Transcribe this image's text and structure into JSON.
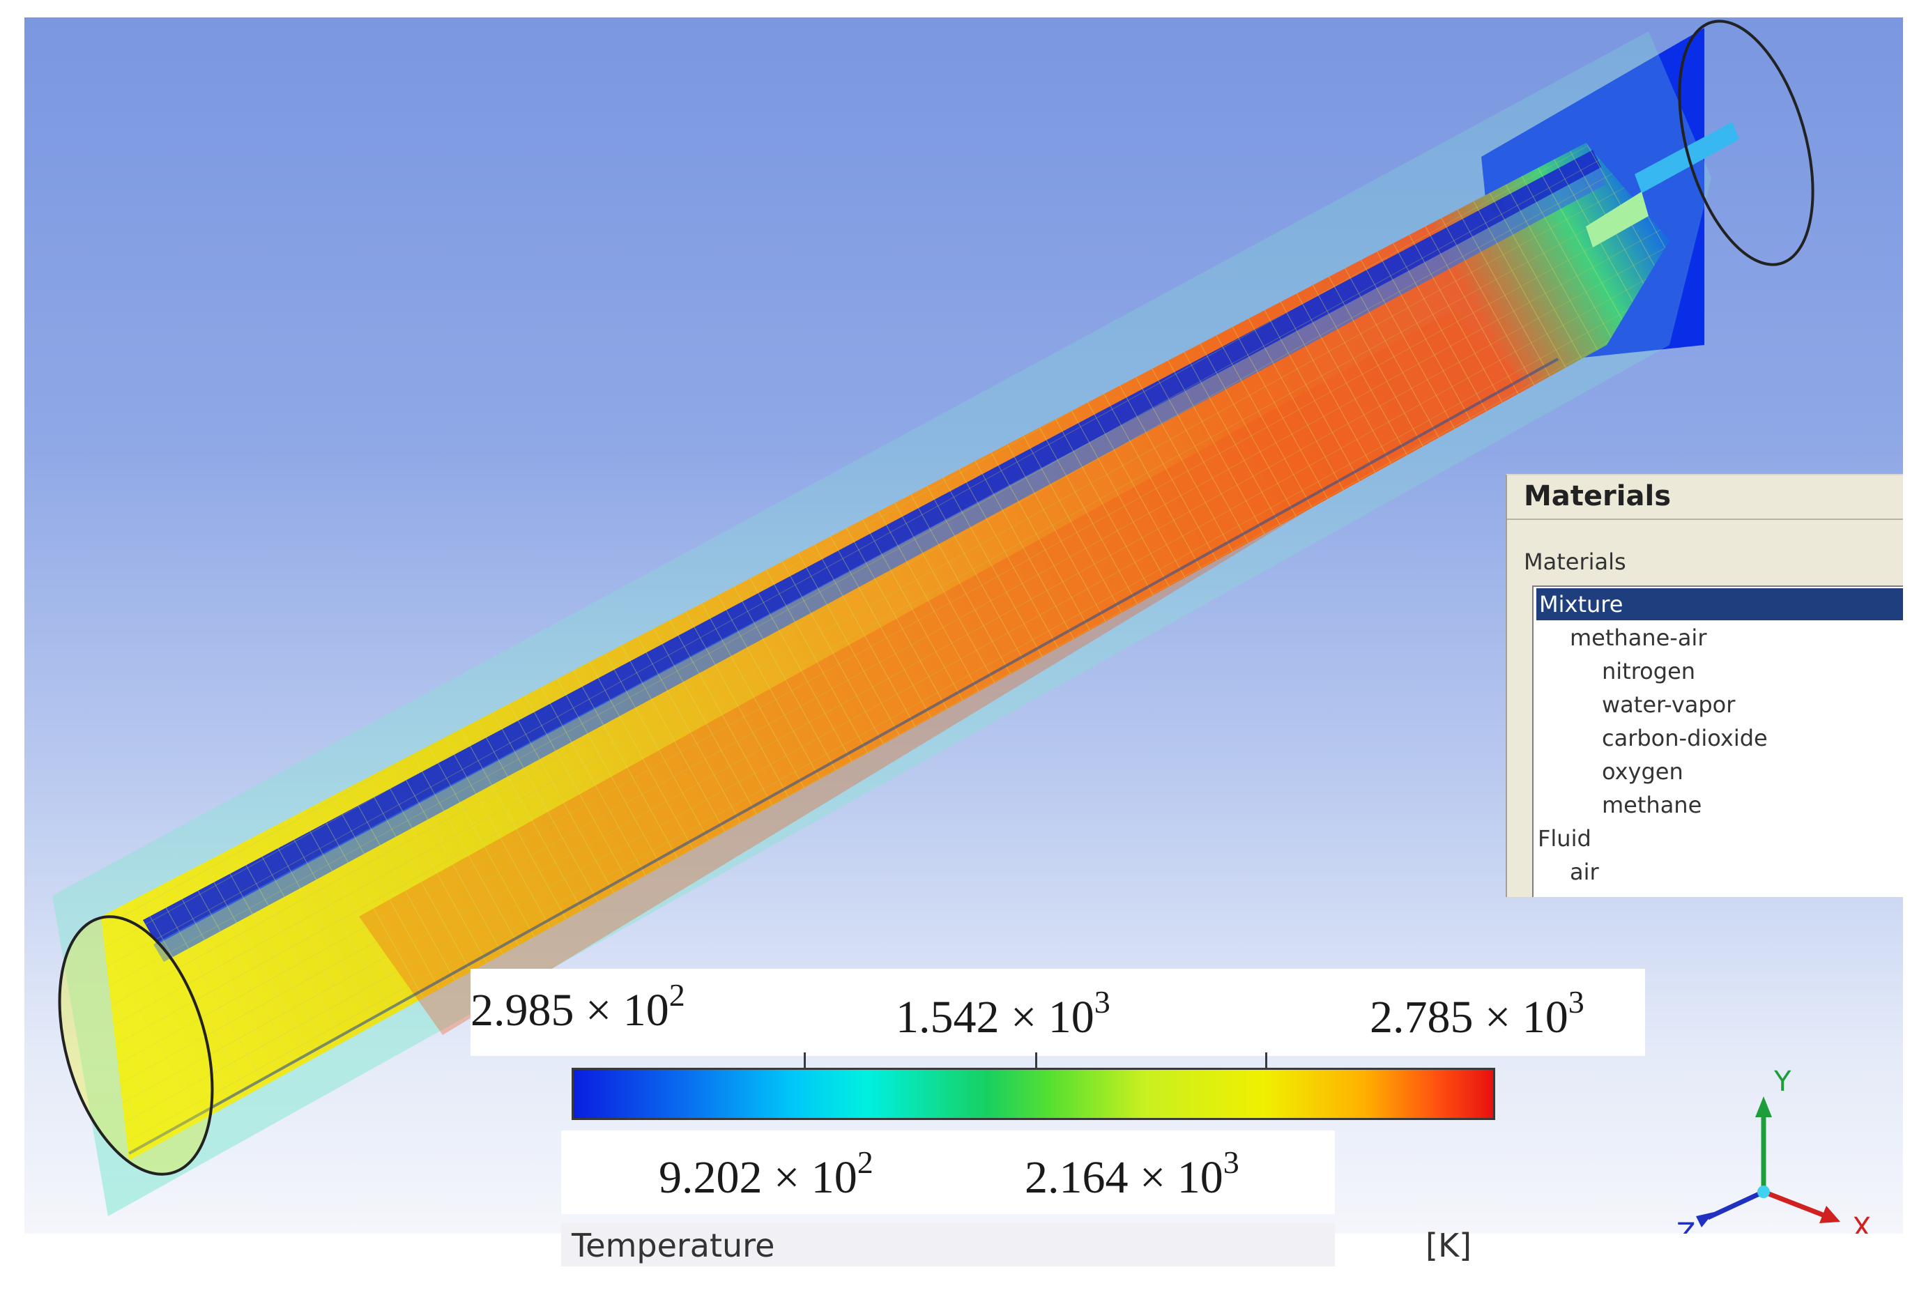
{
  "materials_panel": {
    "title": "Materials",
    "list_label": "Materials",
    "items": [
      {
        "label": "Mixture",
        "level": 0,
        "selected": true
      },
      {
        "label": "methane-air",
        "level": 1,
        "selected": false
      },
      {
        "label": "nitrogen",
        "level": 2,
        "selected": false
      },
      {
        "label": "water-vapor",
        "level": 2,
        "selected": false
      },
      {
        "label": "carbon-dioxide",
        "level": 2,
        "selected": false
      },
      {
        "label": "oxygen",
        "level": 2,
        "selected": false
      },
      {
        "label": "methane",
        "level": 2,
        "selected": false
      },
      {
        "label": "Fluid",
        "level": 0,
        "selected": false
      },
      {
        "label": "air",
        "level": 1,
        "selected": false
      }
    ]
  },
  "legend": {
    "quantity": "Temperature",
    "unit": "[K]",
    "top_labels": [
      {
        "mantissa": "2.985",
        "times": "× 10",
        "exp": "2"
      },
      {
        "mantissa": "1.542",
        "times": "× 10",
        "exp": "3"
      },
      {
        "mantissa": "2.785",
        "times": "× 10",
        "exp": "3"
      }
    ],
    "bottom_labels": [
      {
        "mantissa": "9.202",
        "times": "× 10",
        "exp": "2"
      },
      {
        "mantissa": "2.164",
        "times": "× 10",
        "exp": "3"
      }
    ],
    "colors": [
      "#0a1ee0",
      "#00c8f8",
      "#18d060",
      "#f0f000",
      "#e81010"
    ]
  },
  "triad": {
    "y_label": "Y",
    "x_label": "X",
    "z_label": "Z",
    "y_color": "#1e9e3a",
    "x_color": "#d02020",
    "z_color": "#2030c0"
  }
}
